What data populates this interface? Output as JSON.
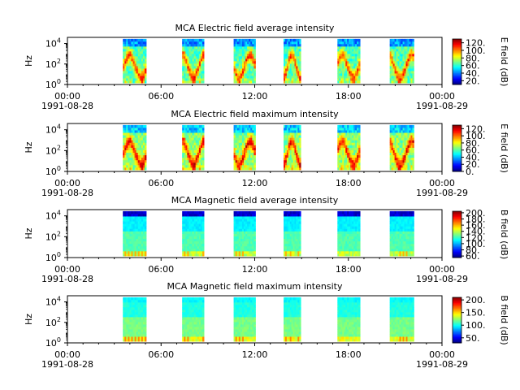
{
  "chart_data": [
    {
      "type": "heatmap",
      "title": "MCA  Electric field average intensity",
      "ylabel": "Hz",
      "ytick_labels": [
        {
          "base": "10",
          "exp": "0"
        },
        {
          "base": "10",
          "exp": "2"
        },
        {
          "base": "10",
          "exp": "4"
        }
      ],
      "x_range_hours": [
        0,
        24
      ],
      "y_range_log10_hz": [
        0,
        4.6
      ],
      "xtick_labels": [
        "00:00",
        "06:00",
        "12:00",
        "18:00",
        "00:00"
      ],
      "date_labels": [
        "1991-08-28",
        "1991-08-29"
      ],
      "colorbar": {
        "label": "E field (dB)",
        "range": [
          10,
          130
        ],
        "ticks": [
          "20.",
          "40.",
          "60.",
          "80.",
          "100.",
          "120."
        ],
        "tick_values": [
          20,
          40,
          60,
          80,
          100,
          120
        ]
      },
      "passes": [
        [
          3.55,
          5.05
        ],
        [
          7.35,
          8.75
        ],
        [
          10.65,
          12.05
        ],
        [
          13.85,
          14.95
        ],
        [
          17.3,
          18.75
        ],
        [
          20.65,
          22.2
        ]
      ],
      "intensity_profile": "electric-average"
    },
    {
      "type": "heatmap",
      "title": "MCA  Electric field maximum intensity",
      "ylabel": "Hz",
      "ytick_labels": [
        {
          "base": "10",
          "exp": "0"
        },
        {
          "base": "10",
          "exp": "2"
        },
        {
          "base": "10",
          "exp": "4"
        }
      ],
      "x_range_hours": [
        0,
        24
      ],
      "y_range_log10_hz": [
        0,
        4.6
      ],
      "xtick_labels": [
        "00:00",
        "06:00",
        "12:00",
        "18:00",
        "00:00"
      ],
      "date_labels": [
        "1991-08-28",
        "1991-08-29"
      ],
      "colorbar": {
        "label": "E field (dB)",
        "range": [
          0,
          130
        ],
        "ticks": [
          "0.",
          "20.",
          "40.",
          "60.",
          "80.",
          "100.",
          "120."
        ],
        "tick_values": [
          0,
          20,
          40,
          60,
          80,
          100,
          120
        ]
      },
      "passes": [
        [
          3.55,
          5.05
        ],
        [
          7.35,
          8.75
        ],
        [
          10.65,
          12.05
        ],
        [
          13.85,
          14.95
        ],
        [
          17.3,
          18.75
        ],
        [
          20.65,
          22.2
        ]
      ],
      "intensity_profile": "electric-maximum"
    },
    {
      "type": "heatmap",
      "title": "MCA  Magnetic field average intensity",
      "ylabel": "Hz",
      "ytick_labels": [
        {
          "base": "10",
          "exp": "0"
        },
        {
          "base": "10",
          "exp": "2"
        },
        {
          "base": "10",
          "exp": "4"
        }
      ],
      "x_range_hours": [
        0,
        24
      ],
      "y_range_log10_hz": [
        0,
        4.6
      ],
      "xtick_labels": [
        "00:00",
        "06:00",
        "12:00",
        "18:00",
        "00:00"
      ],
      "date_labels": [
        "1991-08-28",
        "1991-08-29"
      ],
      "colorbar": {
        "label": "B field (dB)",
        "range": [
          55,
          205
        ],
        "ticks": [
          "60.",
          "80.",
          "100.",
          "120.",
          "140.",
          "160.",
          "180.",
          "200."
        ],
        "tick_values": [
          60,
          80,
          100,
          120,
          140,
          160,
          180,
          200
        ]
      },
      "passes": [
        [
          3.55,
          5.05
        ],
        [
          7.35,
          8.75
        ],
        [
          10.65,
          12.05
        ],
        [
          13.85,
          14.95
        ],
        [
          17.3,
          18.75
        ],
        [
          20.65,
          22.2
        ]
      ],
      "intensity_profile": "magnetic-average"
    },
    {
      "type": "heatmap",
      "title": "MCA  Magnetic field maximum intensity",
      "ylabel": "Hz",
      "ytick_labels": [
        {
          "base": "10",
          "exp": "0"
        },
        {
          "base": "10",
          "exp": "2"
        },
        {
          "base": "10",
          "exp": "4"
        }
      ],
      "x_range_hours": [
        0,
        24
      ],
      "y_range_log10_hz": [
        0,
        4.6
      ],
      "xtick_labels": [
        "00:00",
        "06:00",
        "12:00",
        "18:00",
        "00:00"
      ],
      "date_labels": [
        "1991-08-28",
        "1991-08-29"
      ],
      "colorbar": {
        "label": "B field (dB)",
        "range": [
          30,
          210
        ],
        "ticks": [
          "50.",
          "100.",
          "150.",
          "200."
        ],
        "tick_values": [
          50,
          100,
          150,
          200
        ]
      },
      "passes": [
        [
          3.55,
          5.05
        ],
        [
          7.35,
          8.75
        ],
        [
          10.65,
          12.05
        ],
        [
          13.85,
          14.95
        ],
        [
          17.3,
          18.75
        ],
        [
          20.65,
          22.2
        ]
      ],
      "intensity_profile": "magnetic-maximum"
    }
  ],
  "colors": {
    "colormap_jet": [
      "#00007f",
      "#0000ff",
      "#007fff",
      "#00ffff",
      "#7fff7f",
      "#ffff00",
      "#ff7f00",
      "#ff0000",
      "#7f0000"
    ],
    "axis": "#000000",
    "background": "#ffffff"
  }
}
